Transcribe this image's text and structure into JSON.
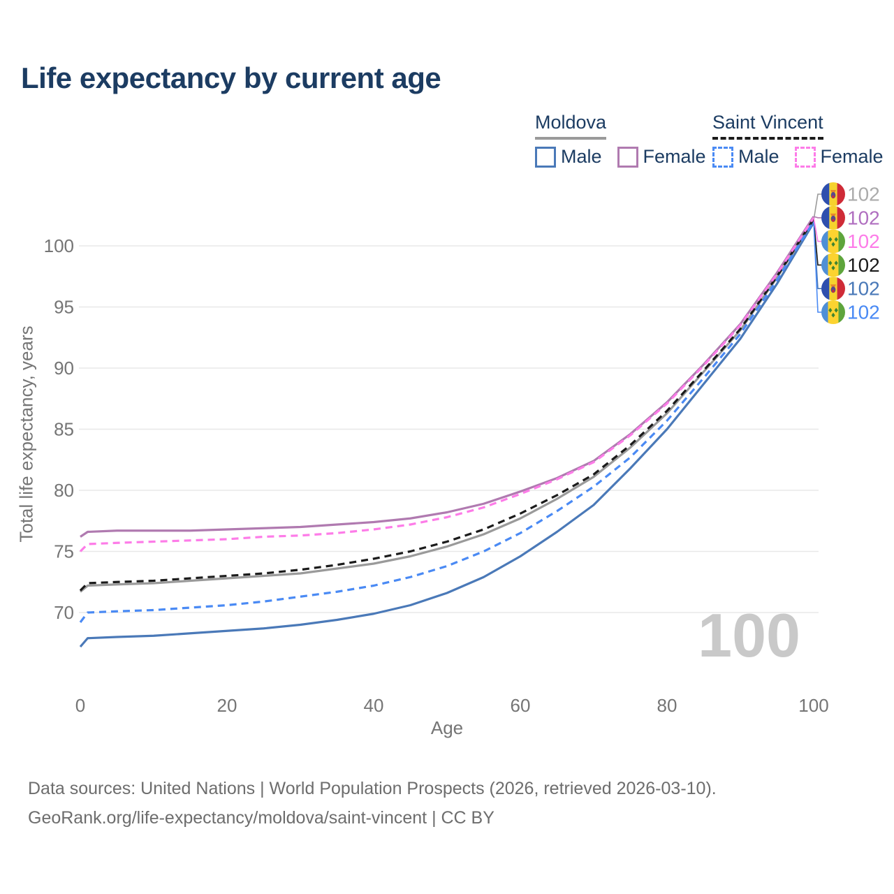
{
  "title": "Life expectancy by current age",
  "legend": {
    "groups": [
      {
        "label": "Moldova",
        "line_style": "solid",
        "items": [
          {
            "label": "Male"
          },
          {
            "label": "Female"
          }
        ]
      },
      {
        "label": "Saint Vincent",
        "line_style": "dashed",
        "items": [
          {
            "label": "Male"
          },
          {
            "label": "Female"
          }
        ]
      }
    ]
  },
  "hover": {
    "age_label": "100"
  },
  "footer": {
    "line1": "Data sources: United Nations | World Population Prospects (2026, retrieved 2026-03-10).",
    "line2": "GeoRank.org/life-expectancy/moldova/saint-vincent | CC BY"
  },
  "colors": {
    "title_text": "#1c3c62",
    "axis_text": "#757575",
    "gridline": "#e8e8e8",
    "watermark": "#c9c9c9",
    "footer_text": "#6d6d6d",
    "moldova_male": "#4a79b8",
    "moldova_female": "#b07ab0",
    "moldova_both": "#9a9a9a",
    "saint_vincent_male": "#4a8af4",
    "saint_vincent_female": "#fd7ce8",
    "saint_vincent_both": "#1b1b1b"
  },
  "chart_data": {
    "type": "line",
    "title": "Life expectancy by current age",
    "xlabel": "Age",
    "ylabel": "Total life expectancy, years",
    "x_ticks": [
      0,
      20,
      40,
      60,
      80,
      100
    ],
    "y_ticks": [
      70,
      75,
      80,
      85,
      90,
      95,
      100
    ],
    "xlim": [
      0,
      100
    ],
    "ylim": [
      66,
      103
    ],
    "grid": "horizontal-only",
    "legend_position": "top-right",
    "x": [
      0,
      1,
      5,
      10,
      15,
      20,
      25,
      30,
      35,
      40,
      45,
      50,
      55,
      60,
      65,
      70,
      75,
      80,
      85,
      90,
      95,
      100
    ],
    "series": [
      {
        "name": "Moldova Both sexes",
        "country": "Moldova",
        "sex": "both",
        "color": "#9a9a9a",
        "dash": false,
        "flag": "moldova",
        "end_label": "102",
        "label_color": "#ababab",
        "label_row": 1,
        "values": [
          71.7,
          72.2,
          72.3,
          72.4,
          72.6,
          72.8,
          73.0,
          73.2,
          73.6,
          74.0,
          74.6,
          75.4,
          76.4,
          77.7,
          79.3,
          81.1,
          83.5,
          86.3,
          89.7,
          93.1,
          97.4,
          102.1
        ]
      },
      {
        "name": "Moldova Male",
        "country": "Moldova",
        "sex": "male",
        "color": "#4a79b8",
        "dash": false,
        "flag": "moldova",
        "end_label": "102",
        "label_color": "#4a79b8",
        "label_row": 5,
        "values": [
          67.2,
          67.9,
          68.0,
          68.1,
          68.3,
          68.5,
          68.7,
          69.0,
          69.4,
          69.9,
          70.6,
          71.6,
          72.9,
          74.6,
          76.6,
          78.8,
          81.8,
          85.0,
          88.7,
          92.4,
          96.9,
          101.9
        ]
      },
      {
        "name": "Moldova Female",
        "country": "Moldova",
        "sex": "female",
        "color": "#b07ab0",
        "dash": false,
        "flag": "moldova",
        "end_label": "102",
        "label_color": "#b06fc0",
        "label_row": 2,
        "values": [
          76.2,
          76.6,
          76.7,
          76.7,
          76.7,
          76.8,
          76.9,
          77.0,
          77.2,
          77.4,
          77.7,
          78.2,
          78.9,
          79.9,
          81.0,
          82.4,
          84.6,
          87.2,
          90.3,
          93.6,
          97.8,
          102.4
        ]
      },
      {
        "name": "Saint Vincent Both sexes",
        "country": "Saint Vincent",
        "sex": "both",
        "color": "#1b1b1b",
        "dash": true,
        "flag": "saint-vincent",
        "end_label": "102",
        "label_color": "#1b1b1b",
        "label_row": 4,
        "values": [
          71.8,
          72.4,
          72.5,
          72.6,
          72.8,
          73.0,
          73.2,
          73.5,
          73.9,
          74.4,
          75.0,
          75.8,
          76.8,
          78.1,
          79.6,
          81.3,
          83.7,
          86.5,
          89.8,
          93.2,
          97.5,
          102.2
        ]
      },
      {
        "name": "Saint Vincent Male",
        "country": "Saint Vincent",
        "sex": "male",
        "color": "#4a8af4",
        "dash": true,
        "flag": "saint-vincent",
        "end_label": "102",
        "label_color": "#4a8af4",
        "label_row": 6,
        "values": [
          69.2,
          70.0,
          70.1,
          70.2,
          70.4,
          70.6,
          70.9,
          71.3,
          71.7,
          72.2,
          72.9,
          73.8,
          75.0,
          76.5,
          78.3,
          80.3,
          82.7,
          85.7,
          89.2,
          92.8,
          97.2,
          102.0
        ]
      },
      {
        "name": "Saint Vincent Female",
        "country": "Saint Vincent",
        "sex": "female",
        "color": "#fd7ce8",
        "dash": true,
        "flag": "saint-vincent",
        "end_label": "102",
        "label_color": "#fd7ce8",
        "label_row": 3,
        "values": [
          75.0,
          75.6,
          75.7,
          75.8,
          75.9,
          76.0,
          76.2,
          76.3,
          76.5,
          76.8,
          77.2,
          77.8,
          78.6,
          79.7,
          80.9,
          82.3,
          84.5,
          87.1,
          90.2,
          93.5,
          97.7,
          102.3
        ]
      }
    ]
  }
}
